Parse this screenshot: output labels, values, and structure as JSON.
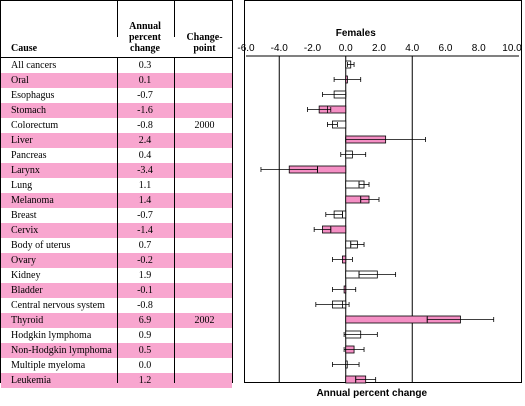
{
  "table": {
    "headers": {
      "cause": "Cause",
      "apc": [
        "Annual",
        "percent",
        "change"
      ],
      "changepoint": [
        "Change-",
        "point"
      ]
    },
    "rows": [
      {
        "cause": "All cancers",
        "apc": "0.3",
        "changepoint": "",
        "highlight": false
      },
      {
        "cause": "Oral",
        "apc": "0.1",
        "changepoint": "",
        "highlight": true
      },
      {
        "cause": "Esophagus",
        "apc": "-0.7",
        "changepoint": "",
        "highlight": false
      },
      {
        "cause": "Stomach",
        "apc": "-1.6",
        "changepoint": "",
        "highlight": true
      },
      {
        "cause": "Colorectum",
        "apc": "-0.8",
        "changepoint": "2000",
        "highlight": false
      },
      {
        "cause": "Liver",
        "apc": "2.4",
        "changepoint": "",
        "highlight": true
      },
      {
        "cause": "Pancreas",
        "apc": "0.4",
        "changepoint": "",
        "highlight": false
      },
      {
        "cause": "Larynx",
        "apc": "-3.4",
        "changepoint": "",
        "highlight": true
      },
      {
        "cause": "Lung",
        "apc": "1.1",
        "changepoint": "",
        "highlight": false
      },
      {
        "cause": "Melanoma",
        "apc": "1.4",
        "changepoint": "",
        "highlight": true
      },
      {
        "cause": "Breast",
        "apc": "-0.7",
        "changepoint": "",
        "highlight": false
      },
      {
        "cause": "Cervix",
        "apc": "-1.4",
        "changepoint": "",
        "highlight": true
      },
      {
        "cause": "Body of uterus",
        "apc": "0.7",
        "changepoint": "",
        "highlight": false
      },
      {
        "cause": "Ovary",
        "apc": "-0.2",
        "changepoint": "",
        "highlight": true
      },
      {
        "cause": "Kidney",
        "apc": "1.9",
        "changepoint": "",
        "highlight": false
      },
      {
        "cause": "Bladder",
        "apc": "-0.1",
        "changepoint": "",
        "highlight": true
      },
      {
        "cause": "Central nervous system",
        "apc": "-0.8",
        "changepoint": "",
        "highlight": false
      },
      {
        "cause": "Thyroid",
        "apc": "6.9",
        "changepoint": "2002",
        "highlight": true
      },
      {
        "cause": "Hodgkin lymphoma",
        "apc": "0.9",
        "changepoint": "",
        "highlight": false
      },
      {
        "cause": "Non-Hodgkin lymphoma",
        "apc": "0.5",
        "changepoint": "",
        "highlight": true
      },
      {
        "cause": "Multiple myeloma",
        "apc": "0.0",
        "changepoint": "",
        "highlight": false
      },
      {
        "cause": "Leukemia",
        "apc": "1.2",
        "changepoint": "",
        "highlight": true
      }
    ]
  },
  "colors": {
    "highlight": "#f8a6cf",
    "bar_pink": "#f48fc4",
    "bar_white": "#ffffff",
    "grid": "#000000"
  },
  "chart_data": {
    "type": "bar",
    "orientation": "horizontal",
    "title": "Females",
    "xlabel": "Annual percent change",
    "xlim": [
      -6.0,
      10.0
    ],
    "xticks": [
      "-6.0",
      "-4.0",
      "-2.0",
      "0.0",
      "2.0",
      "4.0",
      "6.0",
      "8.0",
      "10.0"
    ],
    "grid_lines_at": [
      -4.0,
      0.0,
      4.0
    ],
    "categories": [
      "All cancers",
      "Oral",
      "Esophagus",
      "Stomach",
      "Colorectum",
      "Liver",
      "Pancreas",
      "Larynx",
      "Lung",
      "Melanoma",
      "Breast",
      "Cervix",
      "Body of uterus",
      "Ovary",
      "Kidney",
      "Bladder",
      "Central nervous system",
      "Thyroid",
      "Hodgkin lymphoma",
      "Non-Hodgkin lymphoma",
      "Multiple myeloma",
      "Leukemia"
    ],
    "values": [
      0.3,
      0.1,
      -0.7,
      -1.6,
      -0.8,
      2.4,
      0.4,
      -3.4,
      1.1,
      1.4,
      -0.7,
      -1.4,
      0.7,
      -0.2,
      1.9,
      -0.1,
      -0.8,
      6.9,
      0.9,
      0.5,
      0.0,
      1.2
    ],
    "ci_low": [
      0.1,
      -0.7,
      -1.4,
      -2.3,
      -1.1,
      0.0,
      -0.3,
      -5.1,
      0.8,
      0.9,
      -1.2,
      -1.9,
      0.3,
      -0.8,
      0.8,
      -0.8,
      -1.8,
      4.9,
      -0.1,
      -0.1,
      -0.8,
      0.6
    ],
    "ci_high": [
      0.5,
      0.9,
      0.0,
      -0.9,
      -0.5,
      4.8,
      1.2,
      -1.7,
      1.4,
      2.0,
      -0.2,
      -0.9,
      1.1,
      0.4,
      3.0,
      0.6,
      0.2,
      8.9,
      1.9,
      1.1,
      0.8,
      1.8
    ],
    "bar_inner_split": [
      null,
      null,
      null,
      -1.1,
      null,
      null,
      null,
      -1.7,
      0.8,
      0.9,
      -0.2,
      -0.9,
      0.3,
      null,
      0.8,
      null,
      -0.2,
      4.9,
      null,
      null,
      null,
      0.6
    ],
    "highlight": [
      false,
      true,
      false,
      true,
      false,
      true,
      false,
      true,
      false,
      true,
      false,
      true,
      false,
      true,
      false,
      true,
      false,
      true,
      false,
      true,
      false,
      true
    ]
  }
}
